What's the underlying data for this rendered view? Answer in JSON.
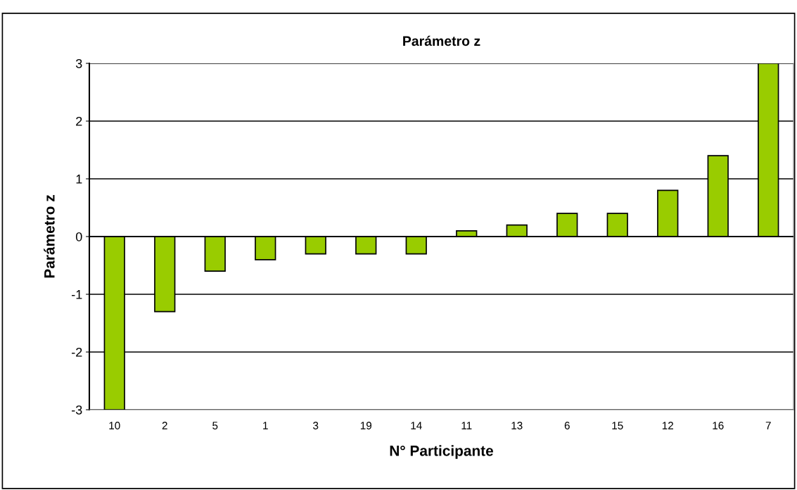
{
  "chart_data": {
    "type": "bar",
    "title": "Parámetro z",
    "xlabel": "N° Participante",
    "ylabel": "Parámetro z",
    "categories": [
      "10",
      "2",
      "5",
      "1",
      "3",
      "19",
      "14",
      "11",
      "13",
      "6",
      "15",
      "12",
      "16",
      "7"
    ],
    "values": [
      -3,
      -1.3,
      -0.6,
      -0.4,
      -0.3,
      -0.3,
      -0.3,
      0.1,
      0.2,
      0.4,
      0.4,
      0.8,
      1.4,
      3
    ],
    "color": "#99cc00",
    "ylim": [
      -3,
      3
    ],
    "yticks": [
      -3,
      -2,
      -1,
      0,
      1,
      2,
      3
    ],
    "grid": "y"
  }
}
